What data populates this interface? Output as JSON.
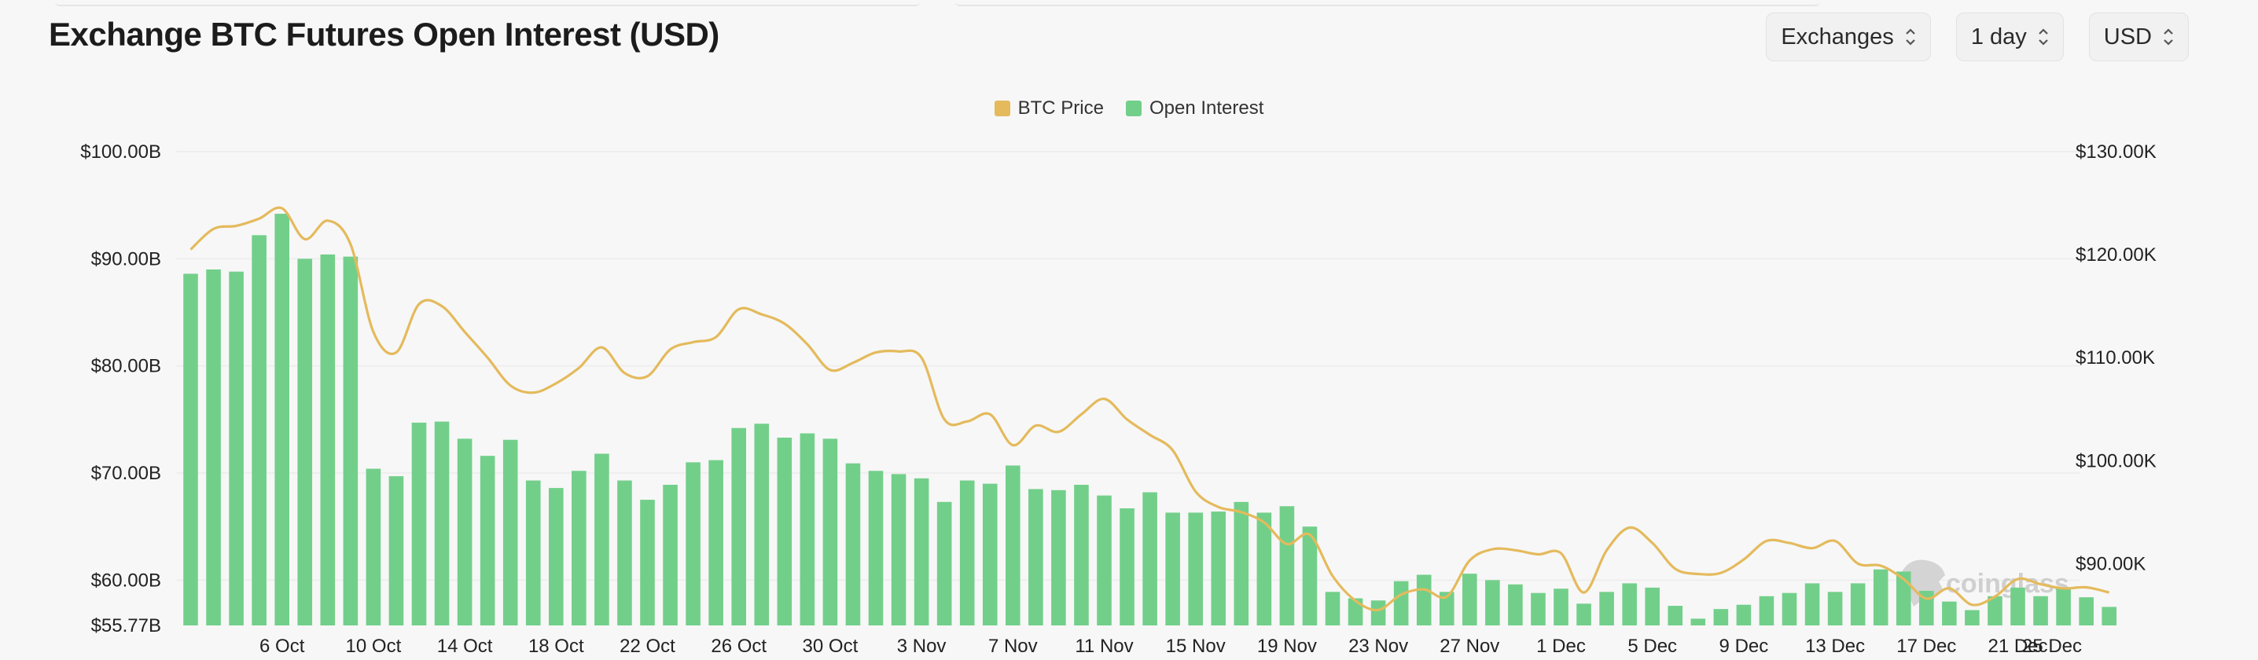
{
  "header": {
    "title": "Exchange BTC Futures Open Interest (USD)",
    "controls": [
      {
        "label": "Exchanges",
        "icon": "chevron-updown-icon"
      },
      {
        "label": "1 day",
        "icon": "chevron-updown-icon"
      },
      {
        "label": "USD",
        "icon": "chevron-updown-icon"
      }
    ]
  },
  "colors": {
    "price": "#E4BA5C",
    "oi": "#72CF8A",
    "grid": "#ececec",
    "watermark": "#cfcfcf"
  },
  "watermark": {
    "text": "coinglass",
    "icon": "coinglass-logo-icon"
  },
  "chart_data": {
    "type": "bar",
    "x_start_date": "2025-10-02",
    "x_tick_labels": [
      "6 Oct",
      "10 Oct",
      "14 Oct",
      "18 Oct",
      "22 Oct",
      "26 Oct",
      "30 Oct",
      "3 Nov",
      "7 Nov",
      "11 Nov",
      "15 Nov",
      "19 Nov",
      "23 Nov",
      "27 Nov",
      "1 Dec",
      "5 Dec",
      "9 Dec",
      "13 Dec",
      "17 Dec",
      "21 Dec",
      "25 Dec"
    ],
    "x_tick_index": [
      4,
      8,
      12,
      16,
      20,
      24,
      28,
      32,
      36,
      40,
      44,
      48,
      52,
      56,
      60,
      64,
      68,
      72,
      76,
      80,
      84
    ],
    "y_left": {
      "label": "",
      "unit": "B",
      "min": 55.77,
      "max": 100,
      "ticks": [
        55.77,
        60,
        70,
        80,
        90,
        100
      ],
      "tick_labels": [
        "$55.77B",
        "$60.00B",
        "$70.00B",
        "$80.00B",
        "$90.00B",
        "$100.00B"
      ]
    },
    "y_right": {
      "label": "",
      "unit": "K",
      "min": 84,
      "max": 130,
      "ticks": [
        90,
        100,
        110,
        120,
        130
      ],
      "tick_labels": [
        "$90.00K",
        "$100.00K",
        "$110.00K",
        "$120.00K",
        "$130.00K"
      ]
    },
    "legend_position": "top-center",
    "grid": true,
    "series": [
      {
        "name": "Open Interest",
        "type": "bar",
        "axis": "left",
        "values": [
          88.6,
          89.0,
          88.8,
          92.2,
          94.2,
          90.0,
          90.4,
          90.2,
          70.4,
          69.7,
          74.7,
          74.8,
          73.2,
          71.6,
          73.1,
          69.3,
          68.6,
          70.2,
          71.8,
          69.3,
          67.5,
          68.9,
          71.0,
          71.2,
          74.2,
          74.6,
          73.3,
          73.7,
          73.2,
          70.9,
          70.2,
          69.9,
          69.5,
          67.3,
          69.3,
          69.0,
          70.7,
          68.5,
          68.4,
          68.9,
          67.9,
          66.7,
          68.2,
          66.3,
          66.3,
          66.4,
          67.3,
          66.3,
          66.9,
          65.0,
          58.9,
          58.3,
          58.1,
          59.9,
          60.5,
          58.9,
          60.6,
          60.0,
          59.6,
          58.8,
          59.2,
          57.8,
          58.9,
          59.7,
          59.3,
          57.6,
          56.4,
          57.3,
          57.7,
          58.5,
          58.8,
          59.7,
          58.9,
          59.7,
          61.0,
          60.8,
          59.0,
          58.0,
          57.2,
          58.5,
          59.3,
          58.5,
          59.2,
          58.4,
          57.5
        ]
      },
      {
        "name": "BTC Price",
        "type": "line",
        "axis": "right",
        "values": [
          120.5,
          122.5,
          122.8,
          123.5,
          124.5,
          121.5,
          123.3,
          121.0,
          112.5,
          110.5,
          115.2,
          115.0,
          112.5,
          110.0,
          107.3,
          106.6,
          107.5,
          109.0,
          111.0,
          108.5,
          108.2,
          110.8,
          111.5,
          112.0,
          114.7,
          114.2,
          113.3,
          111.3,
          108.8,
          109.5,
          110.5,
          110.6,
          110.0,
          104.0,
          103.8,
          104.5,
          101.5,
          103.4,
          102.8,
          104.5,
          106.0,
          104.0,
          102.5,
          101.0,
          97.0,
          95.5,
          95.0,
          94.0,
          91.9,
          92.8,
          88.8,
          86.4,
          85.5,
          87.0,
          87.5,
          86.8,
          90.3,
          91.4,
          91.3,
          90.9,
          91.0,
          87.2,
          91.3,
          93.5,
          92.0,
          89.5,
          89.0,
          89.1,
          90.4,
          92.2,
          92.0,
          91.5,
          92.2,
          90.0,
          89.8,
          88.5,
          86.6,
          87.6,
          86.0,
          86.8,
          88.5,
          88.0,
          87.6,
          87.7,
          87.2
        ]
      }
    ]
  }
}
